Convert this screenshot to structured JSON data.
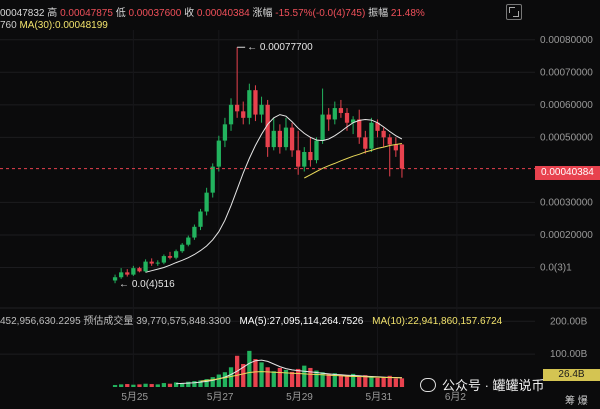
{
  "header": {
    "open_frag": "00047832",
    "high_label": "高",
    "high_val": "0.00047875",
    "low_label": "低",
    "low_val": "0.00037600",
    "close_label": "收",
    "close_val": "0.00040384",
    "change_label": "涨幅",
    "change_val": "-15.57%(-0.0(4)745)",
    "amp_label": "振幅",
    "amp_val": "21.48%",
    "left_frag": "760",
    "ma30": "MA(30):0.00048199"
  },
  "volume_header": {
    "vol_frag": "452,956,630.2295",
    "est_label": "预估成交量",
    "est_val": "39,770,575,848.3300",
    "ma5": "MA(5):27,095,114,264.7526",
    "ma10": "MA(10):22,941,860,157.6724"
  },
  "price_tag": "0.00040384",
  "volume_tag": "26.4B",
  "watermark": "公众号 · 罐罐说币",
  "corner_text": "筹 爆",
  "chart_data": [
    {
      "type": "candlestick",
      "x_labels": [
        "5月25",
        "5月27",
        "5月29",
        "5月31",
        "6月2"
      ],
      "y_ticks": [
        "0.00080000",
        "0.00070000",
        "0.00060000",
        "0.00050000",
        "0.00030000",
        "0.00020000",
        "0.0(3)1"
      ],
      "y_tick_values": [
        0.0008,
        0.0007,
        0.0006,
        0.0005,
        0.0003,
        0.0002,
        0.0001
      ],
      "ylim": [
        0.0,
        0.00083
      ],
      "high_annotation": "0.00077700",
      "low_annotation": "0.0(4)516",
      "high_point": 0.000777,
      "low_point": 5.16e-05,
      "current_price": 0.00040384,
      "colors": {
        "up": "#22b35e",
        "down": "#e8424e",
        "ma_white": "#e6e6e6",
        "ma_yellow": "#e8d85a"
      },
      "candles": [
        {
          "o": 6e-05,
          "h": 7.8e-05,
          "l": 5.16e-05,
          "c": 7e-05
        },
        {
          "o": 7e-05,
          "h": 9.8e-05,
          "l": 6.5e-05,
          "c": 8.5e-05
        },
        {
          "o": 8.5e-05,
          "h": 9.5e-05,
          "l": 7.2e-05,
          "c": 7.8e-05
        },
        {
          "o": 7.8e-05,
          "h": 0.000105,
          "l": 7.4e-05,
          "c": 9.8e-05
        },
        {
          "o": 9.8e-05,
          "h": 0.000102,
          "l": 8.5e-05,
          "c": 8.8e-05
        },
        {
          "o": 8.8e-05,
          "h": 0.000125,
          "l": 8.5e-05,
          "c": 0.000118
        },
        {
          "o": 0.000118,
          "h": 0.000128,
          "l": 0.000105,
          "c": 0.000112
        },
        {
          "o": 0.000112,
          "h": 0.000122,
          "l": 0.000105,
          "c": 0.000115
        },
        {
          "o": 0.000115,
          "h": 0.00014,
          "l": 0.00011,
          "c": 0.000135
        },
        {
          "o": 0.000135,
          "h": 0.000148,
          "l": 0.000125,
          "c": 0.00013
        },
        {
          "o": 0.00013,
          "h": 0.000155,
          "l": 0.000125,
          "c": 0.00015
        },
        {
          "o": 0.00015,
          "h": 0.000175,
          "l": 0.000145,
          "c": 0.00017
        },
        {
          "o": 0.00017,
          "h": 0.000198,
          "l": 0.000165,
          "c": 0.000192
        },
        {
          "o": 0.000192,
          "h": 0.000232,
          "l": 0.000185,
          "c": 0.000225
        },
        {
          "o": 0.000225,
          "h": 0.00028,
          "l": 0.000215,
          "c": 0.000272
        },
        {
          "o": 0.000272,
          "h": 0.000345,
          "l": 0.00026,
          "c": 0.00033
        },
        {
          "o": 0.00033,
          "h": 0.00042,
          "l": 0.000315,
          "c": 0.00041
        },
        {
          "o": 0.00041,
          "h": 0.000505,
          "l": 0.000395,
          "c": 0.00049
        },
        {
          "o": 0.00049,
          "h": 0.00056,
          "l": 0.00047,
          "c": 0.00054
        },
        {
          "o": 0.00054,
          "h": 0.00062,
          "l": 0.00052,
          "c": 0.0006
        },
        {
          "o": 0.0006,
          "h": 0.000777,
          "l": 0.00056,
          "c": 0.00058
        },
        {
          "o": 0.00058,
          "h": 0.00061,
          "l": 0.00054,
          "c": 0.00056
        },
        {
          "o": 0.00056,
          "h": 0.000665,
          "l": 0.00054,
          "c": 0.000645
        },
        {
          "o": 0.000645,
          "h": 0.00066,
          "l": 0.00055,
          "c": 0.00057
        },
        {
          "o": 0.00057,
          "h": 0.000625,
          "l": 0.000545,
          "c": 0.0006
        },
        {
          "o": 0.0006,
          "h": 0.000615,
          "l": 0.00044,
          "c": 0.00047
        },
        {
          "o": 0.00047,
          "h": 0.00056,
          "l": 0.00046,
          "c": 0.00052
        },
        {
          "o": 0.00052,
          "h": 0.00054,
          "l": 0.00045,
          "c": 0.00047
        },
        {
          "o": 0.00047,
          "h": 0.00056,
          "l": 0.00046,
          "c": 0.00053
        },
        {
          "o": 0.00053,
          "h": 0.000545,
          "l": 0.00044,
          "c": 0.00046
        },
        {
          "o": 0.00046,
          "h": 0.00052,
          "l": 0.000385,
          "c": 0.00041
        },
        {
          "o": 0.00041,
          "h": 0.00047,
          "l": 0.000395,
          "c": 0.000455
        },
        {
          "o": 0.000455,
          "h": 0.0005,
          "l": 0.00041,
          "c": 0.00043
        },
        {
          "o": 0.00043,
          "h": 0.0005,
          "l": 0.00042,
          "c": 0.00049
        },
        {
          "o": 0.00049,
          "h": 0.00065,
          "l": 0.00048,
          "c": 0.00057
        },
        {
          "o": 0.00057,
          "h": 0.00059,
          "l": 0.00052,
          "c": 0.000555
        },
        {
          "o": 0.000555,
          "h": 0.00061,
          "l": 0.00054,
          "c": 0.00059
        },
        {
          "o": 0.00059,
          "h": 0.000615,
          "l": 0.00056,
          "c": 0.000575
        },
        {
          "o": 0.000575,
          "h": 0.00059,
          "l": 0.00052,
          "c": 0.000545
        },
        {
          "o": 0.000545,
          "h": 0.000565,
          "l": 0.00051,
          "c": 0.000555
        },
        {
          "o": 0.000555,
          "h": 0.000585,
          "l": 0.00048,
          "c": 0.0005
        },
        {
          "o": 0.0005,
          "h": 0.00052,
          "l": 0.00045,
          "c": 0.000465
        },
        {
          "o": 0.000465,
          "h": 0.00056,
          "l": 0.000455,
          "c": 0.000545
        },
        {
          "o": 0.000545,
          "h": 0.000555,
          "l": 0.0005,
          "c": 0.00052
        },
        {
          "o": 0.00052,
          "h": 0.00053,
          "l": 0.00047,
          "c": 0.0005
        },
        {
          "o": 0.0005,
          "h": 0.00051,
          "l": 0.00038,
          "c": 0.000478
        },
        {
          "o": 0.000478,
          "h": 0.0005,
          "l": 0.00044,
          "c": 0.00046
        },
        {
          "o": 0.000478,
          "h": 0.000479,
          "l": 0.000376,
          "c": 0.000404
        }
      ],
      "ma_white": [
        8.5e-05,
        9e-05,
        9.5e-05,
        0.0001,
        0.000107,
        0.000115,
        0.000122,
        0.00013,
        0.00014,
        0.000152,
        0.000166,
        0.000185,
        0.00021,
        0.000245,
        0.00029,
        0.00034,
        0.00039,
        0.000435,
        0.000475,
        0.00051,
        0.00054,
        0.00056,
        0.00057,
        0.000565,
        0.000548,
        0.000528,
        0.000512,
        0.0005,
        0.000492,
        0.00049,
        0.000495,
        0.000505,
        0.000518,
        0.000532,
        0.000545,
        0.000552,
        0.000555,
        0.000553,
        0.000545,
        0.000532,
        0.000518,
        0.000505,
        0.000495
      ],
      "ma_yellow": [
        0.000375,
        0.000385,
        0.000395,
        0.000405,
        0.000413,
        0.00042,
        0.000428,
        0.000435,
        0.000442,
        0.000448,
        0.000455,
        0.00046,
        0.000466,
        0.00047,
        0.000475,
        0.000478,
        0.000481
      ]
    },
    {
      "type": "bar",
      "title": "volume",
      "y_ticks": [
        "200.00B",
        "100.00B"
      ],
      "y_tick_values": [
        200,
        100
      ],
      "ylim": [
        0,
        210
      ],
      "unit": "B",
      "values": [
        6,
        8,
        9,
        7,
        8,
        10,
        9,
        8,
        12,
        10,
        14,
        12,
        16,
        18,
        20,
        24,
        30,
        38,
        45,
        60,
        95,
        70,
        110,
        85,
        75,
        60,
        48,
        58,
        52,
        46,
        55,
        65,
        58,
        50,
        45,
        40,
        42,
        38,
        35,
        40,
        32,
        36,
        33,
        28,
        30,
        34,
        26,
        26.4
      ],
      "ma_white": [
        10,
        11,
        12,
        13,
        15,
        17,
        20,
        25,
        30,
        38,
        48,
        60,
        72,
        80,
        82,
        78,
        70,
        62,
        56,
        52,
        50,
        48,
        46,
        44,
        42,
        40,
        38,
        37,
        36,
        35,
        34,
        33,
        32,
        31,
        30,
        29,
        29,
        28
      ],
      "ma_yellow": [
        18,
        20,
        22,
        25,
        28,
        32,
        36,
        40,
        44,
        46,
        47,
        46,
        45,
        44,
        43,
        42,
        41,
        40,
        39,
        38,
        37,
        36,
        35,
        34,
        33,
        32,
        32,
        31,
        30,
        30,
        29,
        29,
        28,
        28
      ]
    }
  ]
}
